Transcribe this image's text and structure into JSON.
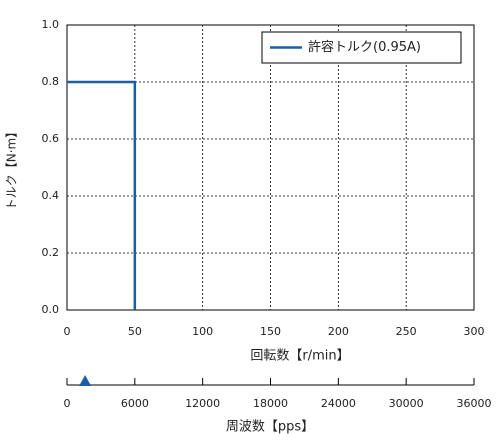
{
  "chart_data": {
    "type": "line",
    "ylabel": "トルク【N·m】",
    "xlabel": "回転数【r/min】",
    "x": [
      0,
      50,
      50
    ],
    "series": [
      {
        "name": "許容トルク(0.95A)",
        "color": "#1a5fa6",
        "values": [
          0.8,
          0.8,
          0
        ]
      }
    ],
    "xlim": [
      0,
      300
    ],
    "xticks": [
      0,
      50,
      100,
      150,
      200,
      250,
      300
    ],
    "ylim": [
      0,
      1
    ],
    "yticks": [
      {
        "value": 0,
        "label": "0.0"
      },
      0.2,
      0.4,
      0.6,
      0.8,
      {
        "value": 1,
        "label": "1.0"
      }
    ],
    "grid": true,
    "legend": "upper right",
    "x2label": "周波数【pps】",
    "x2lim": [
      0,
      36000
    ],
    "x2ticks": [
      0,
      6000,
      12000,
      18000,
      24000,
      30000,
      36000
    ],
    "x2_marker": 1600,
    "x2_marker_color": "#1a5fa6"
  }
}
